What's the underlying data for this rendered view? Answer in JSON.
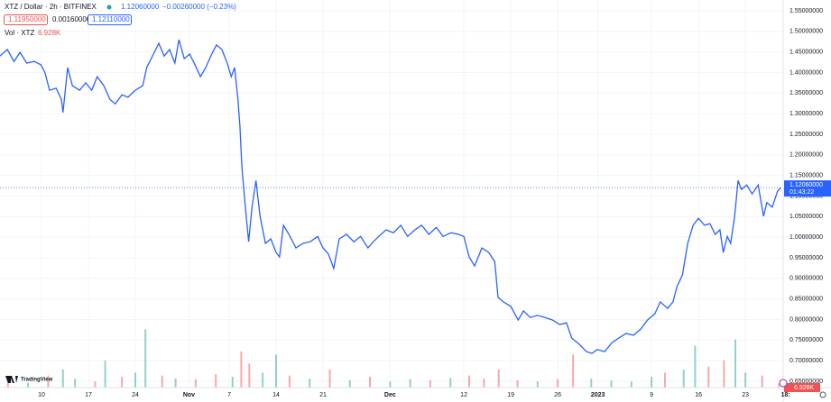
{
  "chart_data": {
    "type": "line",
    "title": "XTZ / Dollar · 2h · BITFINEX",
    "last_price": "1.12060000",
    "change": "−0.00260000 (−0.23%)",
    "bid": "1.11950000",
    "spread": "0.00160000",
    "ask": "1.12110000",
    "price_countdown": "01:43:22",
    "brand": "TradingView",
    "xlim": [
      -6.19,
      110.5
    ],
    "xticks": [
      {
        "value": 0,
        "label": "10"
      },
      {
        "value": 7,
        "label": "17"
      },
      {
        "value": 14,
        "label": "24"
      },
      {
        "value": 22,
        "label": "Nov"
      },
      {
        "value": 28,
        "label": "7"
      },
      {
        "value": 35,
        "label": "14"
      },
      {
        "value": 42,
        "label": "21"
      },
      {
        "value": 52,
        "label": "Dec"
      },
      {
        "value": 63,
        "label": "12"
      },
      {
        "value": 70,
        "label": "19"
      },
      {
        "value": 77,
        "label": "26"
      },
      {
        "value": 83,
        "label": "2023"
      },
      {
        "value": 91,
        "label": "9"
      },
      {
        "value": 98,
        "label": "16"
      },
      {
        "value": 105,
        "label": "23"
      },
      {
        "value": 111,
        "label": "18:"
      }
    ],
    "ylim": [
      0.6347,
      1.5763
    ],
    "yticks": [
      {
        "value": 0.65,
        "label": "0.65000000"
      },
      {
        "value": 0.7,
        "label": "0.70000000"
      },
      {
        "value": 0.75,
        "label": "0.75000000"
      },
      {
        "value": 0.8,
        "label": "0.80000000"
      },
      {
        "value": 0.85,
        "label": "0.85000000"
      },
      {
        "value": 0.9,
        "label": "0.90000000"
      },
      {
        "value": 0.95,
        "label": "0.95000000"
      },
      {
        "value": 1.0,
        "label": "1.00000000"
      },
      {
        "value": 1.05,
        "label": "1.05000000"
      },
      {
        "value": 1.1,
        "label": "1.10000000"
      },
      {
        "value": 1.15,
        "label": "1.15000000"
      },
      {
        "value": 1.2,
        "label": "1.20000000"
      },
      {
        "value": 1.25,
        "label": "1.25000000"
      },
      {
        "value": 1.3,
        "label": "1.30000000"
      },
      {
        "value": 1.35,
        "label": "1.35000000"
      },
      {
        "value": 1.4,
        "label": "1.40000000"
      },
      {
        "value": 1.45,
        "label": "1.45000000"
      },
      {
        "value": 1.5,
        "label": "1.50000000"
      },
      {
        "value": 1.55,
        "label": "1.55000000"
      }
    ],
    "grid": true,
    "series": [
      {
        "color": "#2962ff",
        "x": [
          -6.2,
          -5.1,
          -4.1,
          -3.2,
          -2.2,
          -1.1,
          -0.1,
          0.5,
          1.2,
          2.2,
          2.96,
          3.2,
          3.9,
          4.6,
          5.7,
          6.6,
          7.5,
          8.3,
          9.3,
          10.2,
          11.0,
          12.0,
          12.9,
          14.0,
          15.1,
          15.7,
          16.7,
          17.5,
          18.3,
          19.1,
          19.9,
          20.5,
          21.3,
          22.1,
          22.9,
          23.7,
          24.5,
          25.4,
          26.1,
          26.9,
          27.7,
          28.3,
          28.8,
          29.3,
          29.6,
          29.9,
          30.4,
          30.9,
          31.4,
          32.0,
          32.6,
          33.4,
          34.2,
          35.0,
          35.5,
          36.1,
          36.9,
          37.95,
          39.0,
          40.1,
          41.2,
          42.0,
          42.8,
          43.6,
          44.4,
          45.5,
          46.6,
          47.6,
          48.7,
          49.5,
          50.3,
          51.4,
          52.5,
          53.6,
          54.6,
          55.7,
          56.7,
          57.8,
          58.9,
          59.9,
          61.1,
          62.2,
          63.0,
          63.8,
          64.6,
          65.7,
          66.7,
          67.6,
          68.1,
          68.9,
          70.0,
          71.1,
          71.9,
          72.9,
          74.0,
          75.1,
          76.2,
          77.3,
          78.3,
          79.1,
          80.2,
          81.3,
          82.1,
          82.9,
          84.0,
          85.1,
          86.1,
          87.2,
          88.3,
          89.4,
          90.4,
          91.5,
          92.3,
          93.4,
          94.2,
          94.8,
          95.6,
          96.4,
          97.2,
          98.0,
          98.9,
          99.7,
          100.5,
          101.2,
          101.7,
          102.3,
          102.8,
          103.4,
          103.9,
          104.4,
          105.2,
          106.0,
          106.9,
          107.7,
          108.2,
          109.0,
          109.8,
          110.3
        ],
        "values": [
          1.44,
          1.456,
          1.427,
          1.449,
          1.423,
          1.427,
          1.419,
          1.401,
          1.357,
          1.362,
          1.335,
          1.303,
          1.412,
          1.368,
          1.357,
          1.375,
          1.357,
          1.39,
          1.368,
          1.335,
          1.324,
          1.346,
          1.34,
          1.357,
          1.368,
          1.412,
          1.445,
          1.471,
          1.44,
          1.456,
          1.423,
          1.48,
          1.434,
          1.445,
          1.419,
          1.39,
          1.412,
          1.445,
          1.467,
          1.456,
          1.423,
          1.39,
          1.412,
          1.335,
          1.27,
          1.171,
          1.073,
          0.989,
          1.073,
          1.138,
          1.051,
          0.985,
          0.996,
          0.963,
          0.952,
          1.029,
          1.007,
          0.974,
          0.985,
          0.989,
          1.002,
          0.974,
          0.959,
          0.924,
          0.996,
          1.007,
          0.989,
          1.002,
          0.974,
          0.989,
          1.002,
          1.018,
          1.011,
          1.029,
          1.002,
          1.018,
          1.029,
          1.007,
          1.024,
          1.002,
          1.011,
          1.007,
          1.002,
          0.952,
          0.93,
          0.974,
          0.963,
          0.941,
          0.854,
          0.843,
          0.832,
          0.799,
          0.821,
          0.805,
          0.81,
          0.805,
          0.799,
          0.788,
          0.792,
          0.755,
          0.74,
          0.722,
          0.718,
          0.727,
          0.722,
          0.744,
          0.755,
          0.766,
          0.762,
          0.777,
          0.799,
          0.814,
          0.843,
          0.827,
          0.843,
          0.88,
          0.908,
          0.985,
          1.029,
          1.046,
          1.029,
          1.033,
          1.007,
          1.018,
          0.963,
          1.002,
          0.985,
          1.051,
          1.138,
          1.116,
          1.127,
          1.105,
          1.127,
          1.051,
          1.084,
          1.073,
          1.112,
          1.1206
        ]
      }
    ],
    "volume": {
      "name": "Vol · XTZ",
      "last_label": "6.928K",
      "vlim": [
        0,
        120
      ],
      "x": [
        -5,
        -2,
        1,
        3.2,
        5,
        8,
        9.5,
        12,
        14,
        15.5,
        18,
        20,
        23,
        26,
        28.5,
        29.8,
        31,
        33,
        35,
        37,
        40,
        43,
        46,
        49,
        52,
        55,
        58,
        61,
        63.8,
        66,
        68.2,
        71,
        74,
        77,
        79.3,
        82,
        85,
        88,
        91,
        93,
        95.8,
        97.5,
        99.5,
        101.8,
        103.5,
        105,
        107.5,
        110
      ],
      "values": [
        12,
        8,
        20,
        30,
        15,
        10,
        45,
        18,
        25,
        97,
        20,
        15,
        14,
        22,
        18,
        60,
        40,
        25,
        55,
        20,
        15,
        30,
        12,
        18,
        10,
        14,
        12,
        16,
        20,
        15,
        30,
        12,
        10,
        14,
        55,
        15,
        12,
        10,
        18,
        25,
        30,
        70,
        35,
        45,
        80,
        25,
        20,
        6.928
      ],
      "colors": [
        "#ef5350",
        "#26a69a",
        "#ef5350",
        "#26a69a",
        "#26a69a",
        "#ef5350",
        "#26a69a",
        "#ef5350",
        "#26a69a",
        "#26a69a",
        "#ef5350",
        "#26a69a",
        "#ef5350",
        "#ef5350",
        "#26a69a",
        "#ef5350",
        "#ef5350",
        "#26a69a",
        "#26a69a",
        "#ef5350",
        "#26a69a",
        "#ef5350",
        "#26a69a",
        "#ef5350",
        "#26a69a",
        "#26a69a",
        "#ef5350",
        "#26a69a",
        "#ef5350",
        "#ef5350",
        "#ef5350",
        "#ef5350",
        "#26a69a",
        "#ef5350",
        "#ef5350",
        "#26a69a",
        "#26a69a",
        "#26a69a",
        "#26a69a",
        "#ef5350",
        "#26a69a",
        "#26a69a",
        "#ef5350",
        "#ef5350",
        "#26a69a",
        "#26a69a",
        "#ef5350",
        "#ef5350"
      ]
    }
  }
}
